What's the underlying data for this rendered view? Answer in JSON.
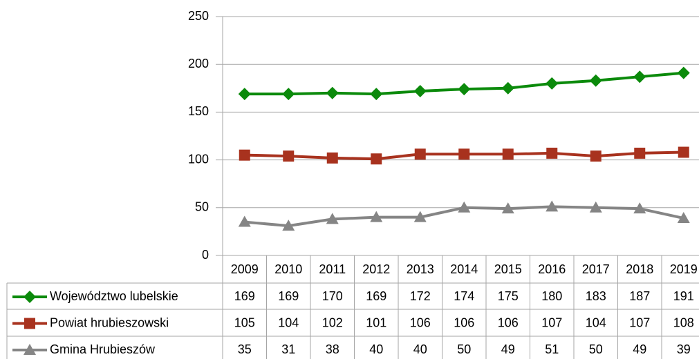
{
  "chart_data": {
    "type": "line",
    "categories": [
      "2009",
      "2010",
      "2011",
      "2012",
      "2013",
      "2014",
      "2015",
      "2016",
      "2017",
      "2018",
      "2019"
    ],
    "series": [
      {
        "name": "Województwo lubelskie",
        "color": "#0b8a0b",
        "marker": "diamond",
        "values": [
          169,
          169,
          170,
          169,
          172,
          174,
          175,
          180,
          183,
          187,
          191
        ]
      },
      {
        "name": "Powiat hrubieszowski",
        "color": "#a8321e",
        "marker": "square",
        "values": [
          105,
          104,
          102,
          101,
          106,
          106,
          106,
          107,
          104,
          107,
          108
        ]
      },
      {
        "name": "Gmina Hrubieszów",
        "color": "#858585",
        "marker": "triangle",
        "values": [
          35,
          31,
          38,
          40,
          40,
          50,
          49,
          51,
          50,
          49,
          39
        ]
      }
    ],
    "ylim": [
      0,
      250
    ],
    "yticks": [
      0,
      50,
      100,
      150,
      200,
      250
    ],
    "grid": true,
    "data_table": true
  }
}
